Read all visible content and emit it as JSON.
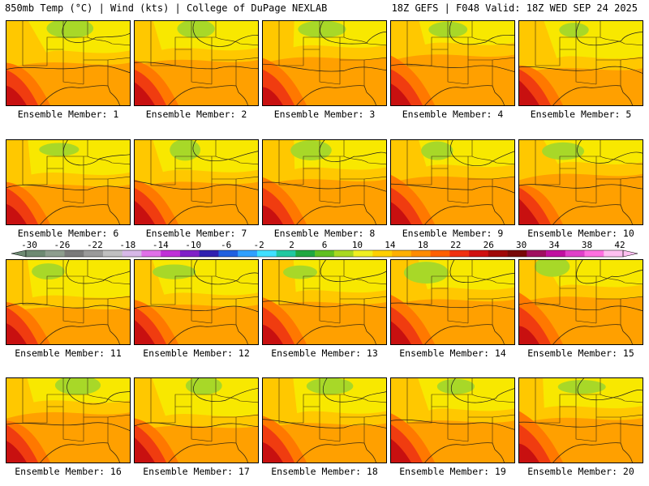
{
  "header": {
    "left": "850mb Temp (°C) | Wind (kts) | College of DuPage NEXLAB",
    "right": "18Z GEFS | F048 Valid: 18Z WED SEP 24 2025"
  },
  "members": [
    {
      "label": "Ensemble Member: 1"
    },
    {
      "label": "Ensemble Member: 2"
    },
    {
      "label": "Ensemble Member: 3"
    },
    {
      "label": "Ensemble Member: 4"
    },
    {
      "label": "Ensemble Member: 5"
    },
    {
      "label": "Ensemble Member: 6"
    },
    {
      "label": "Ensemble Member: 7"
    },
    {
      "label": "Ensemble Member: 8"
    },
    {
      "label": "Ensemble Member: 9"
    },
    {
      "label": "Ensemble Member: 10"
    },
    {
      "label": "Ensemble Member: 11"
    },
    {
      "label": "Ensemble Member: 12"
    },
    {
      "label": "Ensemble Member: 13"
    },
    {
      "label": "Ensemble Member: 14"
    },
    {
      "label": "Ensemble Member: 15"
    },
    {
      "label": "Ensemble Member: 16"
    },
    {
      "label": "Ensemble Member: 17"
    },
    {
      "label": "Ensemble Member: 18"
    },
    {
      "label": "Ensemble Member: 19"
    },
    {
      "label": "Ensemble Member: 20"
    }
  ],
  "colorbar": {
    "labels": [
      "-30",
      "-26",
      "-22",
      "-18",
      "-14",
      "-10",
      "-6",
      "-2",
      "2",
      "6",
      "10",
      "14",
      "18",
      "22",
      "26",
      "30",
      "34",
      "38",
      "42"
    ],
    "colors": [
      "#6e8a72",
      "#8e9e8e",
      "#7a7a7a",
      "#9a9a9a",
      "#c0c0c0",
      "#d7b8e8",
      "#e070e8",
      "#c030d8",
      "#8020c8",
      "#3020b0",
      "#2060e0",
      "#30a0ff",
      "#40e0ff",
      "#20c8a0",
      "#20a840",
      "#60c020",
      "#a8d820",
      "#f0f020",
      "#ffd000",
      "#ffb000",
      "#ff8c00",
      "#ff6000",
      "#f03010",
      "#d01010",
      "#a00808",
      "#780808",
      "#a01060",
      "#c010a0",
      "#e040c8",
      "#ff70e0",
      "#ffc0f0"
    ]
  },
  "map_colors": {
    "yellow": "#f8e800",
    "gold": "#ffc800",
    "orange": "#ffa000",
    "dark_orange": "#ff7800",
    "red": "#f03c10",
    "dark_red": "#c81010",
    "green": "#a8d828"
  }
}
